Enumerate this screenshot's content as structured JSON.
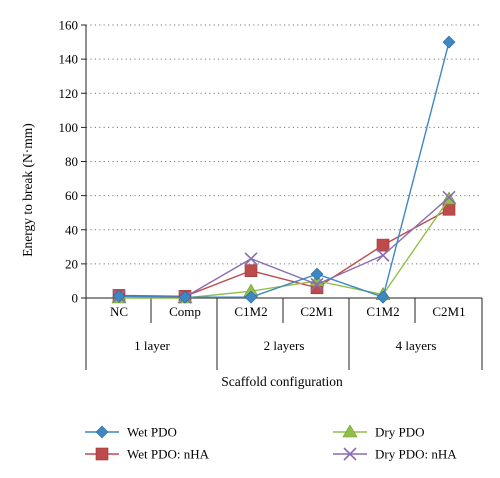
{
  "chart_data": {
    "type": "line",
    "title": "",
    "ylabel": "Energy to break (N·mm)",
    "xlabel": "Scaffold configuration",
    "ylim": [
      0,
      160
    ],
    "yticks": [
      0,
      20,
      40,
      60,
      80,
      100,
      120,
      140,
      160
    ],
    "grid": "horizontal dotted",
    "legend_position": "bottom",
    "categories": [
      "NC",
      "Comp",
      "C1M2",
      "C2M1",
      "C1M2",
      "C2M1"
    ],
    "groups": [
      {
        "label": "1 layer",
        "from": 0,
        "to": 1
      },
      {
        "label": "2 layers",
        "from": 2,
        "to": 3
      },
      {
        "label": "4 layers",
        "from": 4,
        "to": 5
      }
    ],
    "series": [
      {
        "name": "Wet PDO",
        "color": "#3d87c4",
        "marker": "diamond",
        "values": [
          1,
          0.5,
          0.5,
          14,
          0.5,
          150
        ]
      },
      {
        "name": "Dry PDO",
        "color": "#92bf4a",
        "marker": "triangle",
        "values": [
          0,
          0,
          4,
          10,
          2,
          58
        ]
      },
      {
        "name": "Wet PDO: nHA",
        "color": "#be4b4b",
        "marker": "square",
        "values": [
          1.5,
          1,
          16,
          6,
          31,
          52
        ]
      },
      {
        "name": "Dry PDO: nHA",
        "color": "#8a6db0",
        "marker": "cross",
        "values": [
          1,
          0.5,
          23,
          8,
          25,
          59
        ]
      }
    ]
  }
}
